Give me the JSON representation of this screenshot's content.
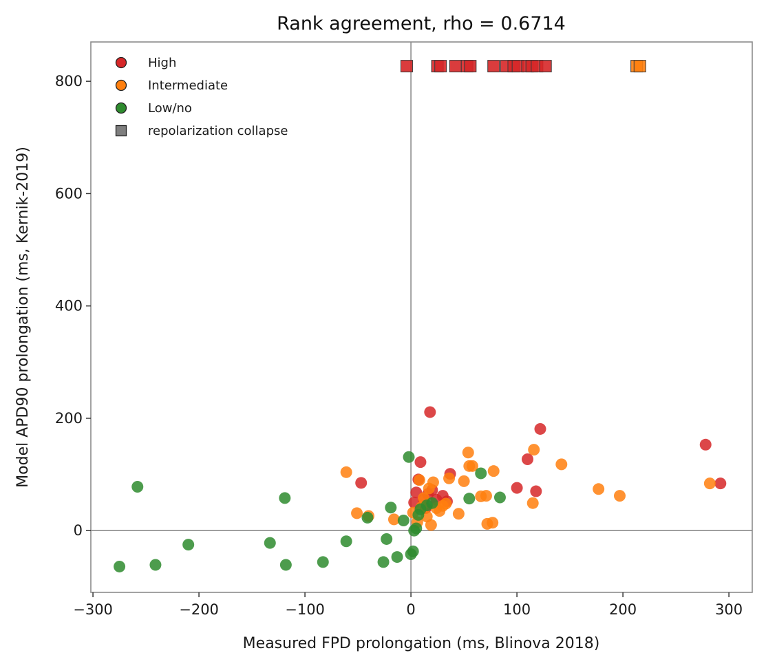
{
  "chart_data": {
    "type": "scatter",
    "title": "Rank agreement, rho = 0.6714",
    "xlabel": "Measured FPD prolongation (ms, Blinova 2018)",
    "ylabel": "Model APD90 prolongation (ms, Kernik-2019)",
    "xlim": [
      -302,
      322
    ],
    "ylim": [
      -110,
      870
    ],
    "xticks": [
      -300,
      -200,
      -100,
      0,
      100,
      200,
      300
    ],
    "yticks": [
      0,
      200,
      400,
      600,
      800
    ],
    "grid": false,
    "reference_lines": {
      "x": 0,
      "y": 0
    },
    "legend_position": "top-left",
    "colors": {
      "High": "#d62728",
      "Intermediate": "#ff7f0e",
      "Low/no": "#2e8b2e",
      "repolarization collapse": "#7f7f7f"
    },
    "legend": [
      {
        "label": "High",
        "marker": "circle",
        "color": "#d62728"
      },
      {
        "label": "Intermediate",
        "marker": "circle",
        "color": "#ff7f0e"
      },
      {
        "label": "Low/no",
        "marker": "circle",
        "color": "#2e8b2e"
      },
      {
        "label": "repolarization collapse",
        "marker": "square",
        "color": "#7f7f7f"
      }
    ],
    "series": [
      {
        "name": "High",
        "marker": "circle",
        "color": "#d62728",
        "points": [
          [
            -47,
            85
          ],
          [
            3,
            50
          ],
          [
            5,
            68
          ],
          [
            7,
            91
          ],
          [
            9,
            122
          ],
          [
            12,
            55
          ],
          [
            14,
            40
          ],
          [
            16,
            65
          ],
          [
            18,
            211
          ],
          [
            20,
            72
          ],
          [
            24,
            55
          ],
          [
            30,
            62
          ],
          [
            34,
            52
          ],
          [
            37,
            101
          ],
          [
            100,
            76
          ],
          [
            110,
            127
          ],
          [
            118,
            70
          ],
          [
            122,
            181
          ],
          [
            278,
            153
          ],
          [
            292,
            84
          ]
        ]
      },
      {
        "name": "Intermediate",
        "marker": "circle",
        "color": "#ff7f0e",
        "points": [
          [
            -61,
            104
          ],
          [
            -51,
            31
          ],
          [
            -40,
            26
          ],
          [
            -16,
            20
          ],
          [
            2,
            32
          ],
          [
            6,
            15
          ],
          [
            8,
            90
          ],
          [
            10,
            42
          ],
          [
            12,
            58
          ],
          [
            15,
            25
          ],
          [
            17,
            75
          ],
          [
            19,
            10
          ],
          [
            21,
            86
          ],
          [
            24,
            40
          ],
          [
            27,
            35
          ],
          [
            30,
            44
          ],
          [
            33,
            48
          ],
          [
            36,
            93
          ],
          [
            45,
            30
          ],
          [
            50,
            88
          ],
          [
            54,
            139
          ],
          [
            55,
            115
          ],
          [
            58,
            115
          ],
          [
            66,
            61
          ],
          [
            71,
            62
          ],
          [
            72,
            12
          ],
          [
            77,
            14
          ],
          [
            78,
            106
          ],
          [
            115,
            49
          ],
          [
            116,
            144
          ],
          [
            142,
            118
          ],
          [
            177,
            74
          ],
          [
            197,
            62
          ],
          [
            282,
            84
          ]
        ]
      },
      {
        "name": "Low/no",
        "marker": "circle",
        "color": "#2e8b2e",
        "points": [
          [
            -275,
            -64
          ],
          [
            -258,
            78
          ],
          [
            -241,
            -61
          ],
          [
            -210,
            -25
          ],
          [
            -133,
            -22
          ],
          [
            -119,
            58
          ],
          [
            -118,
            -61
          ],
          [
            -83,
            -56
          ],
          [
            -61,
            -19
          ],
          [
            -41,
            23
          ],
          [
            -26,
            -56
          ],
          [
            -23,
            -15
          ],
          [
            -19,
            41
          ],
          [
            -13,
            -47
          ],
          [
            -7,
            18
          ],
          [
            -2,
            131
          ],
          [
            0,
            -42
          ],
          [
            2,
            -37
          ],
          [
            3,
            0
          ],
          [
            5,
            4
          ],
          [
            7,
            28
          ],
          [
            9,
            38
          ],
          [
            15,
            45
          ],
          [
            20,
            49
          ],
          [
            55,
            57
          ],
          [
            66,
            102
          ],
          [
            84,
            59
          ]
        ]
      },
      {
        "name": "repolarization collapse (High)",
        "marker": "square",
        "color": "#d62728",
        "points": [
          [
            -4,
            827
          ],
          [
            25,
            827
          ],
          [
            28,
            827
          ],
          [
            42,
            827
          ],
          [
            53,
            827
          ],
          [
            56,
            827
          ],
          [
            78,
            827
          ],
          [
            90,
            827
          ],
          [
            97,
            827
          ],
          [
            101,
            827
          ],
          [
            110,
            827
          ],
          [
            114,
            827
          ],
          [
            119,
            827
          ],
          [
            127,
            827
          ]
        ]
      },
      {
        "name": "repolarization collapse (Intermediate)",
        "marker": "square",
        "color": "#ff7f0e",
        "points": [
          [
            213,
            827
          ],
          [
            216,
            827
          ]
        ]
      }
    ]
  }
}
